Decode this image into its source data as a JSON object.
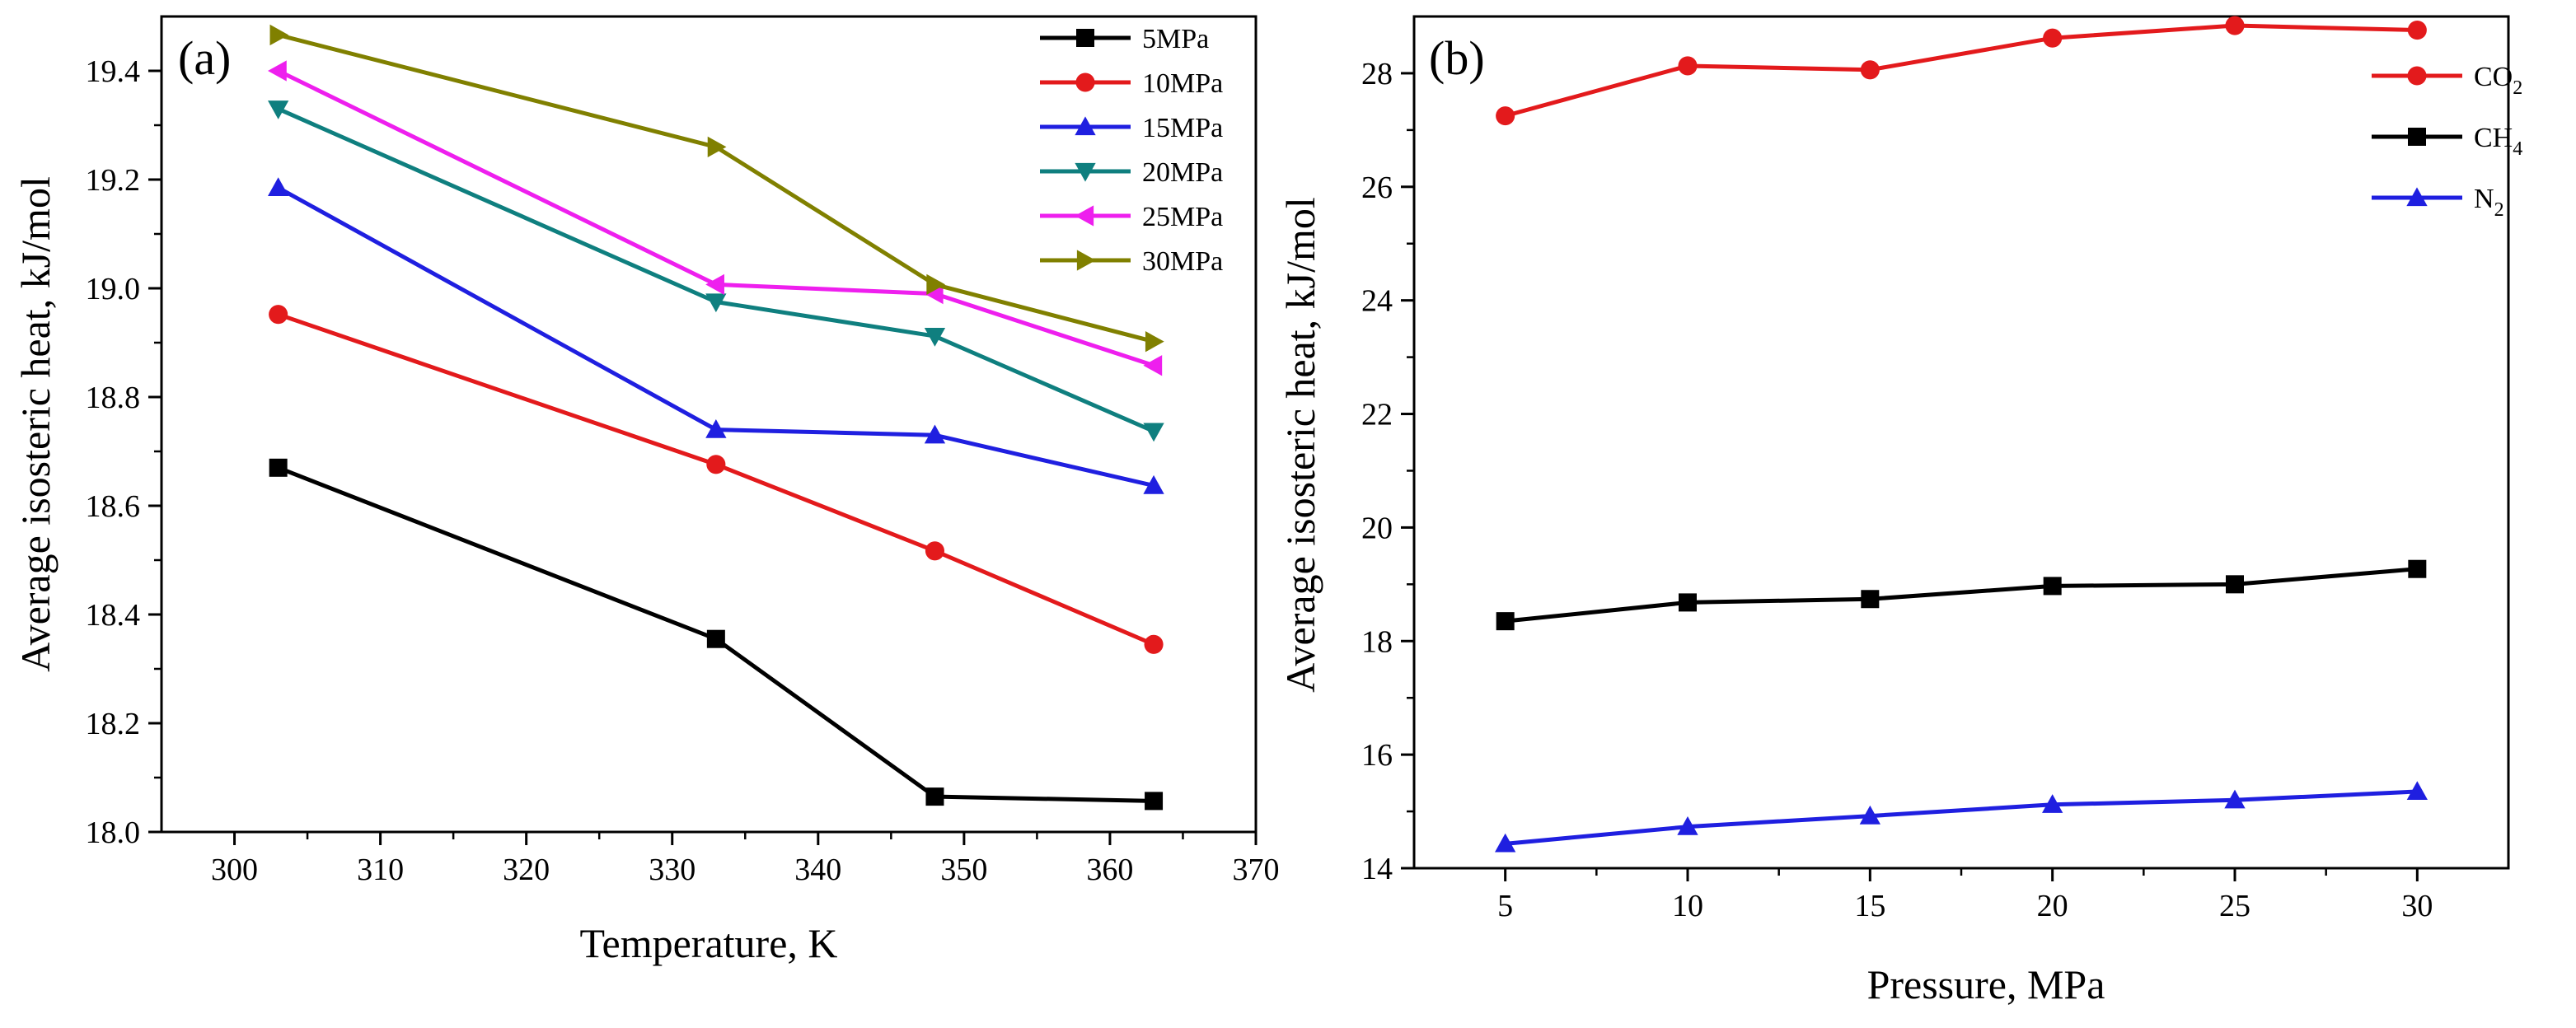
{
  "chart_data": [
    {
      "type": "line",
      "panel_label": "(a)",
      "xlabel": "Temperature, K",
      "ylabel": "Average isosteric heat, kJ/mol",
      "xlim": [
        295,
        370
      ],
      "ylim": [
        18.0,
        19.5
      ],
      "xticks": [
        300,
        310,
        320,
        330,
        340,
        350,
        360,
        370
      ],
      "yticks": [
        18.0,
        18.2,
        18.4,
        18.6,
        18.8,
        19.0,
        19.2,
        19.4
      ],
      "x": [
        303,
        333,
        348,
        363
      ],
      "legend_position": "top-right",
      "series": [
        {
          "name": "5MPa",
          "color": "#000000",
          "marker": "square",
          "values": [
            18.67,
            18.355,
            18.065,
            18.057
          ]
        },
        {
          "name": "10MPa",
          "color": "#e31a1c",
          "marker": "circle",
          "values": [
            18.952,
            18.676,
            18.517,
            18.345
          ]
        },
        {
          "name": "15MPa",
          "color": "#1f1fe0",
          "marker": "triangle-up",
          "values": [
            19.185,
            18.74,
            18.73,
            18.637
          ]
        },
        {
          "name": "20MPa",
          "color": "#0f7f7f",
          "marker": "triangle-down",
          "values": [
            19.33,
            18.975,
            18.912,
            18.737
          ]
        },
        {
          "name": "25MPa",
          "color": "#ee1fee",
          "marker": "triangle-left",
          "values": [
            19.4,
            19.007,
            18.99,
            18.858
          ]
        },
        {
          "name": "30MPa",
          "color": "#808000",
          "marker": "triangle-right",
          "values": [
            19.466,
            19.26,
            19.007,
            18.902
          ]
        }
      ]
    },
    {
      "type": "line",
      "panel_label": "(b)",
      "xlabel": "Pressure, MPa",
      "ylabel": "Average isosteric heat, kJ/mol",
      "xlim": [
        2.5,
        32.5
      ],
      "ylim": [
        14,
        29
      ],
      "xticks": [
        5,
        10,
        15,
        20,
        25,
        30
      ],
      "yticks": [
        14,
        16,
        18,
        20,
        22,
        24,
        26,
        28
      ],
      "x": [
        5,
        10,
        15,
        20,
        25,
        30
      ],
      "legend_position": "top-right",
      "series": [
        {
          "name": "CO",
          "subscript": "2",
          "color": "#e31a1c",
          "marker": "circle",
          "values": [
            27.25,
            28.13,
            28.06,
            28.62,
            28.84,
            28.76
          ]
        },
        {
          "name": "CH",
          "subscript": "4",
          "color": "#000000",
          "marker": "square",
          "values": [
            18.35,
            18.68,
            18.74,
            18.97,
            19.0,
            19.27
          ]
        },
        {
          "name": "N",
          "subscript": "2",
          "color": "#1f1fe0",
          "marker": "triangle-up",
          "values": [
            14.43,
            14.73,
            14.92,
            15.12,
            15.2,
            15.35
          ]
        }
      ]
    }
  ]
}
